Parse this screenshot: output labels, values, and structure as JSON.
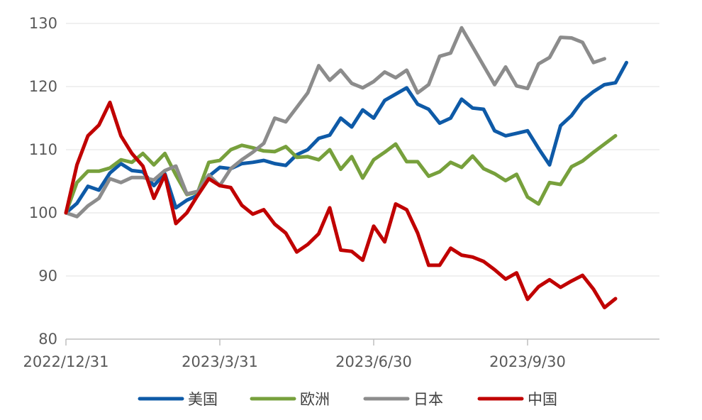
{
  "chart_data": {
    "type": "line",
    "title": "",
    "xlabel": "",
    "ylabel": "",
    "ylim": [
      80,
      130
    ],
    "yticks": [
      80,
      90,
      100,
      110,
      120,
      130
    ],
    "x_range": [
      0,
      54
    ],
    "xticks": [
      {
        "label": "2022/12/31",
        "x": 0
      },
      {
        "label": "2023/3/31",
        "x": 14
      },
      {
        "label": "2023/6/30",
        "x": 28
      },
      {
        "label": "2023/9/30",
        "x": 42
      }
    ],
    "grid": true,
    "legend_position": "bottom",
    "series": [
      {
        "name": "美国",
        "color": "#0e5aa7",
        "values": [
          100,
          101.5,
          104.2,
          103.6,
          106.3,
          107.8,
          106.7,
          106.5,
          104.3,
          106.2,
          100.8,
          102,
          102.8,
          105.8,
          107.2,
          107,
          107.8,
          108,
          108.3,
          107.8,
          107.5,
          109.2,
          110,
          111.8,
          112.3,
          115,
          113.6,
          116.3,
          115,
          117.8,
          118.8,
          119.8,
          117.2,
          116.4,
          114.2,
          115,
          118,
          116.6,
          116.4,
          113,
          112.2,
          112.6,
          113,
          110.2,
          107.6,
          113.8,
          115.4,
          117.8,
          119.2,
          120.3,
          120.6,
          123.8
        ]
      },
      {
        "name": "欧洲",
        "color": "#77a03c",
        "values": [
          100,
          104.8,
          106.6,
          106.6,
          107.1,
          108.4,
          108,
          109.4,
          107.6,
          109.4,
          106,
          102.9,
          103.3,
          108,
          108.3,
          110,
          110.7,
          110.3,
          109.8,
          109.7,
          110.5,
          108.8,
          108.9,
          108.4,
          110,
          106.9,
          108.9,
          105.5,
          108.4,
          109.6,
          110.9,
          108.1,
          108.1,
          105.8,
          106.5,
          108,
          107.2,
          109,
          107,
          106.2,
          105.1,
          106.1,
          102.5,
          101.4,
          104.8,
          104.5,
          107.3,
          108.2,
          109.6,
          110.9,
          112.2
        ]
      },
      {
        "name": "日本",
        "color": "#8c8c8c",
        "values": [
          100,
          99.4,
          101.1,
          102.3,
          105.4,
          104.8,
          105.6,
          105.6,
          105.2,
          106.7,
          107.4,
          103,
          103.4,
          106,
          104.3,
          107,
          108.4,
          109.6,
          111,
          115,
          114.4,
          116.7,
          119,
          123.3,
          121,
          122.6,
          120.5,
          119.8,
          120.8,
          122.3,
          121.4,
          122.6,
          119,
          120.3,
          124.8,
          125.3,
          129.3,
          126.3,
          123.3,
          120.3,
          123.1,
          120.1,
          119.7,
          123.6,
          124.6,
          127.8,
          127.7,
          127,
          123.8,
          124.4
        ]
      },
      {
        "name": "中国",
        "color": "#c00000",
        "values": [
          100,
          107.6,
          112.2,
          113.9,
          117.5,
          112.2,
          109.4,
          107.4,
          102.3,
          106,
          98.3,
          100,
          102.8,
          105.4,
          104.3,
          104,
          101.2,
          99.8,
          100.5,
          98.2,
          96.8,
          93.8,
          95,
          96.7,
          100.8,
          94.1,
          93.9,
          92.5,
          97.9,
          95.4,
          101.4,
          100.5,
          96.8,
          91.7,
          91.7,
          94.4,
          93.3,
          93,
          92.3,
          91,
          89.5,
          90.5,
          86.3,
          88.3,
          89.4,
          88.2,
          89.2,
          90.1,
          87.9,
          85,
          86.4
        ]
      }
    ]
  }
}
